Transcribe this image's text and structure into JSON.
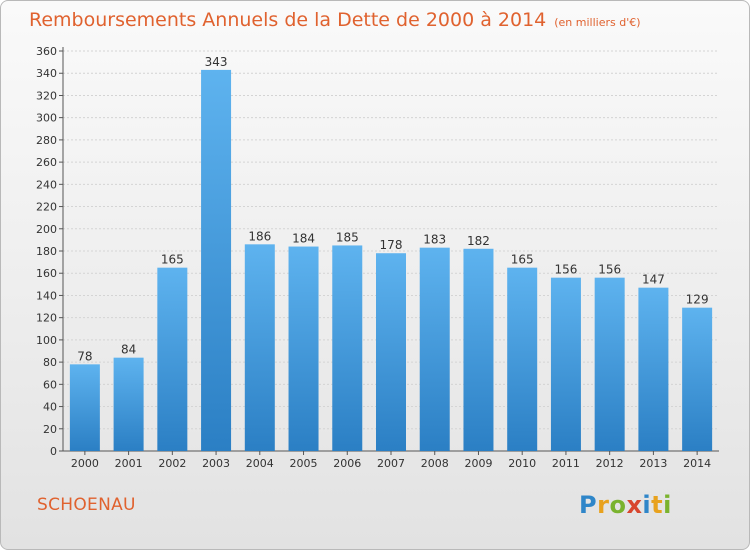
{
  "title": "Remboursements Annuels de la Dette de 2000 à 2014",
  "title_unit": "(en milliers d'€)",
  "city": "SCHOENAU",
  "logo": {
    "text": "Proxiti",
    "letters": [
      {
        "ch": "P",
        "color": "#2f86c9"
      },
      {
        "ch": "r",
        "color": "#e8a21e"
      },
      {
        "ch": "o",
        "color": "#7ab32e"
      },
      {
        "ch": "x",
        "color": "#d8462e"
      },
      {
        "ch": "i",
        "color": "#2f86c9"
      },
      {
        "ch": "t",
        "color": "#e8a21e"
      },
      {
        "ch": "i",
        "color": "#7ab32e"
      }
    ]
  },
  "colors": {
    "accent": "#e0622f",
    "bar_light": "#5eb3ef",
    "bar_dark": "#2b7fc4",
    "grid": "#d4d4d4"
  },
  "chart_data": {
    "type": "bar",
    "categories": [
      "2000",
      "2001",
      "2002",
      "2003",
      "2004",
      "2005",
      "2006",
      "2007",
      "2008",
      "2009",
      "2010",
      "2011",
      "2012",
      "2013",
      "2014"
    ],
    "values": [
      78,
      84,
      165,
      343,
      186,
      184,
      185,
      178,
      183,
      182,
      165,
      156,
      156,
      147,
      129
    ],
    "ylim": [
      0,
      360
    ],
    "yticks": [
      0,
      20,
      40,
      60,
      80,
      100,
      120,
      140,
      160,
      180,
      200,
      220,
      240,
      260,
      280,
      300,
      320,
      340,
      360
    ],
    "grid": true,
    "data_labels": true
  }
}
